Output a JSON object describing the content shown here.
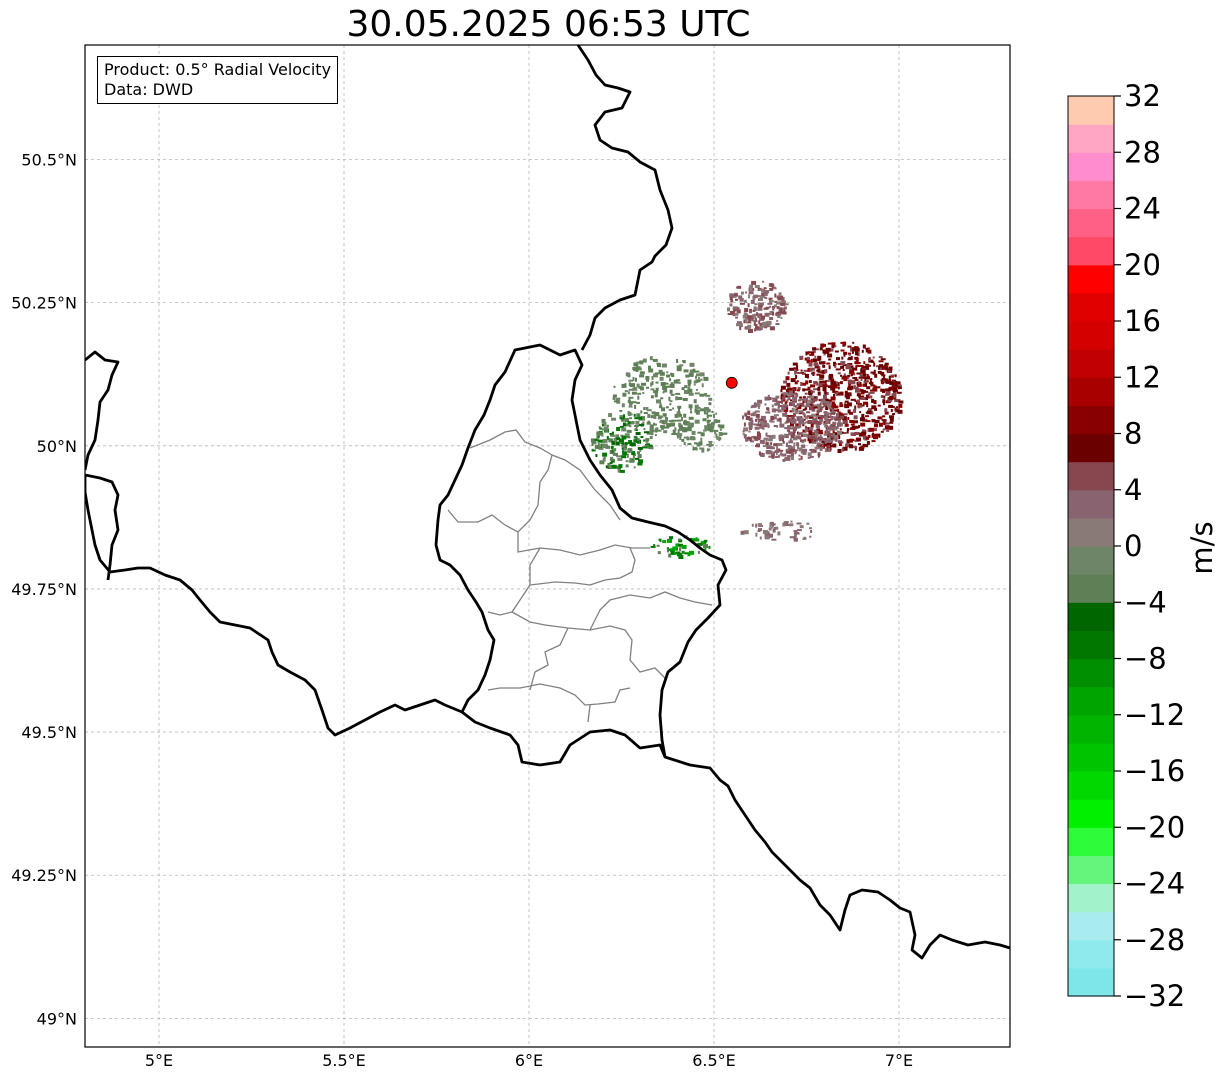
{
  "title": "30.05.2025 06:53 UTC",
  "info": {
    "product": "Product: 0.5° Radial Velocity",
    "source": "Data: DWD"
  },
  "map": {
    "lon_range": [
      4.8,
      7.3
    ],
    "lat_range": [
      48.95,
      50.7
    ],
    "lon_ticks": [
      {
        "value": 5.0,
        "label": "5°E"
      },
      {
        "value": 5.5,
        "label": "5.5°E"
      },
      {
        "value": 6.0,
        "label": "6°E"
      },
      {
        "value": 6.5,
        "label": "6.5°E"
      },
      {
        "value": 7.0,
        "label": "7°E"
      }
    ],
    "lat_ticks": [
      {
        "value": 49.0,
        "label": "49°N"
      },
      {
        "value": 49.25,
        "label": "49.25°N"
      },
      {
        "value": 49.5,
        "label": "49.5°N"
      },
      {
        "value": 49.75,
        "label": "49.75°N"
      },
      {
        "value": 50.0,
        "label": "50°N"
      },
      {
        "value": 50.25,
        "label": "50.25°N"
      },
      {
        "value": 50.5,
        "label": "50.5°N"
      }
    ],
    "radar_site": {
      "lon": 6.548,
      "lat": 50.11,
      "color": "#ff0000"
    }
  },
  "colorbar": {
    "unit": "m/s",
    "min": -32,
    "max": 32,
    "step": 2,
    "ticks": [
      -32,
      -28,
      -24,
      -20,
      -16,
      -12,
      -8,
      -4,
      0,
      4,
      8,
      12,
      16,
      20,
      24,
      28,
      32
    ],
    "tick_labels": [
      "−32",
      "−28",
      "−24",
      "−20",
      "−16",
      "−12",
      "−8",
      "−4",
      "0",
      "4",
      "8",
      "12",
      "16",
      "20",
      "24",
      "28",
      "32"
    ],
    "colors": [
      "#7ee6e8",
      "#8eeaec",
      "#a8ecf0",
      "#a2f3cc",
      "#66f57c",
      "#2efc3a",
      "#00f000",
      "#00d800",
      "#00c400",
      "#00b400",
      "#00a400",
      "#008f00",
      "#007800",
      "#006600",
      "#5f7f56",
      "#6e8568",
      "#8a7a76",
      "#896470",
      "#86474f",
      "#6b0000",
      "#880000",
      "#a80000",
      "#c00000",
      "#d40000",
      "#e00000",
      "#ff0000",
      "#ff4966",
      "#ff6186",
      "#ff79a4",
      "#ff8ccc",
      "#ffa6c4",
      "#ffcbb0"
    ]
  }
}
